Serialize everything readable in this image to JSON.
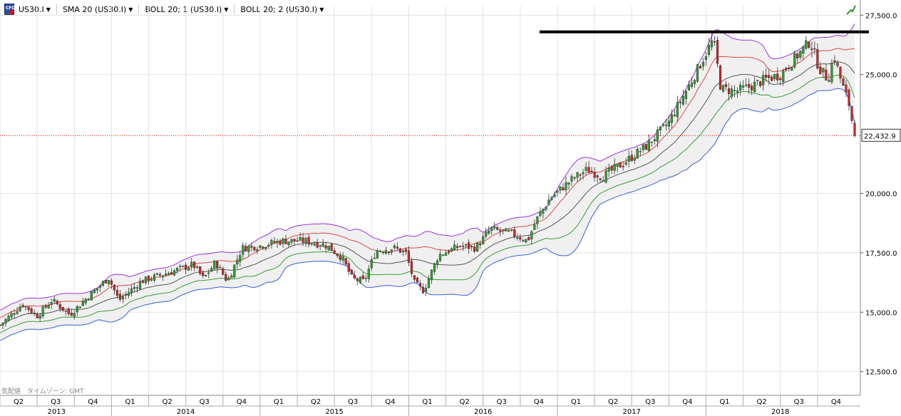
{
  "toolbar": {
    "logo_label": "CFD",
    "symbol": "US30.I",
    "indicators": [
      "SMA 20 (US30.I)",
      "BOLL 20; 1 (US30.I)",
      "BOLL 20; 2 (US30.I)"
    ]
  },
  "footer_note": "気配値　タイムゾーン: GMT",
  "colors": {
    "sma": "#555555",
    "boll1_upper": "#e04848",
    "boll1_lower": "#3a9a3a",
    "boll2_upper": "#9b30e0",
    "boll2_lower": "#3a5fd8",
    "bull_candle": "#2e9e2e",
    "bear_candle": "#c62828",
    "resistance": "#000000",
    "last_price_line": "#d01010"
  },
  "chart_data": {
    "type": "line",
    "title": "",
    "xlabel": "",
    "ylabel": "",
    "ylim": [
      11500,
      27900
    ],
    "grid": true,
    "y_ticks": [
      "27,500.0",
      "25,000.0",
      "22,432.9",
      "20,000.0",
      "17,500.0",
      "15,000.0",
      "12,500.0"
    ],
    "y_tick_values": [
      27500,
      25000,
      20000,
      17500,
      15000,
      12500
    ],
    "last_price": 22432.9,
    "last_price_label": "22,432.9",
    "resistance_level": 26800,
    "x_start": "2013-04",
    "x_end": "2018-12",
    "quarter_labels": [
      {
        "label": "Q2",
        "t": 2013.375
      },
      {
        "label": "Q3",
        "t": 2013.625
      },
      {
        "label": "Q4",
        "t": 2013.875
      },
      {
        "label": "Q1",
        "t": 2014.125
      },
      {
        "label": "Q2",
        "t": 2014.375
      },
      {
        "label": "Q3",
        "t": 2014.625
      },
      {
        "label": "Q4",
        "t": 2014.875
      },
      {
        "label": "Q1",
        "t": 2015.125
      },
      {
        "label": "Q2",
        "t": 2015.375
      },
      {
        "label": "Q3",
        "t": 2015.625
      },
      {
        "label": "Q4",
        "t": 2015.875
      },
      {
        "label": "Q1",
        "t": 2016.125
      },
      {
        "label": "Q2",
        "t": 2016.375
      },
      {
        "label": "Q3",
        "t": 2016.625
      },
      {
        "label": "Q4",
        "t": 2016.875
      },
      {
        "label": "Q1",
        "t": 2017.125
      },
      {
        "label": "Q2",
        "t": 2017.375
      },
      {
        "label": "Q3",
        "t": 2017.625
      },
      {
        "label": "Q4",
        "t": 2017.875
      },
      {
        "label": "Q1",
        "t": 2018.125
      },
      {
        "label": "Q2",
        "t": 2018.375
      },
      {
        "label": "Q3",
        "t": 2018.625
      },
      {
        "label": "Q4",
        "t": 2018.875
      }
    ],
    "year_labels": [
      {
        "label": "2013",
        "t": 2013.63
      },
      {
        "label": "2014",
        "t": 2014.5
      },
      {
        "label": "2015",
        "t": 2015.5
      },
      {
        "label": "2016",
        "t": 2016.5
      },
      {
        "label": "2017",
        "t": 2017.5
      },
      {
        "label": "2018",
        "t": 2018.5
      }
    ],
    "price_path": [
      [
        2013.25,
        14450
      ],
      [
        2013.4,
        15350
      ],
      [
        2013.5,
        14850
      ],
      [
        2013.6,
        15500
      ],
      [
        2013.72,
        14900
      ],
      [
        2013.85,
        15700
      ],
      [
        2013.98,
        16450
      ],
      [
        2014.05,
        15500
      ],
      [
        2014.2,
        16300
      ],
      [
        2014.4,
        16700
      ],
      [
        2014.55,
        17000
      ],
      [
        2014.62,
        16400
      ],
      [
        2014.7,
        17100
      ],
      [
        2014.78,
        16300
      ],
      [
        2014.88,
        17700
      ],
      [
        2015.0,
        17800
      ],
      [
        2015.15,
        18000
      ],
      [
        2015.3,
        18000
      ],
      [
        2015.45,
        17800
      ],
      [
        2015.55,
        17300
      ],
      [
        2015.62,
        16400
      ],
      [
        2015.7,
        16300
      ],
      [
        2015.78,
        17600
      ],
      [
        2015.9,
        17700
      ],
      [
        2015.98,
        17500
      ],
      [
        2016.04,
        16200
      ],
      [
        2016.1,
        15900
      ],
      [
        2016.2,
        17400
      ],
      [
        2016.35,
        17800
      ],
      [
        2016.45,
        17700
      ],
      [
        2016.55,
        18500
      ],
      [
        2016.7,
        18300
      ],
      [
        2016.8,
        18000
      ],
      [
        2016.86,
        18900
      ],
      [
        2016.95,
        19800
      ],
      [
        2017.1,
        20600
      ],
      [
        2017.2,
        21000
      ],
      [
        2017.3,
        20700
      ],
      [
        2017.45,
        21300
      ],
      [
        2017.6,
        22000
      ],
      [
        2017.75,
        23000
      ],
      [
        2017.9,
        24700
      ],
      [
        2018.05,
        26500
      ],
      [
        2018.1,
        24400
      ],
      [
        2018.2,
        24300
      ],
      [
        2018.3,
        24500
      ],
      [
        2018.4,
        24800
      ],
      [
        2018.5,
        25000
      ],
      [
        2018.6,
        25700
      ],
      [
        2018.7,
        26400
      ],
      [
        2018.76,
        25300
      ],
      [
        2018.82,
        24800
      ],
      [
        2018.86,
        25800
      ],
      [
        2018.92,
        24500
      ],
      [
        2018.96,
        23800
      ],
      [
        2019.0,
        22433
      ]
    ]
  }
}
